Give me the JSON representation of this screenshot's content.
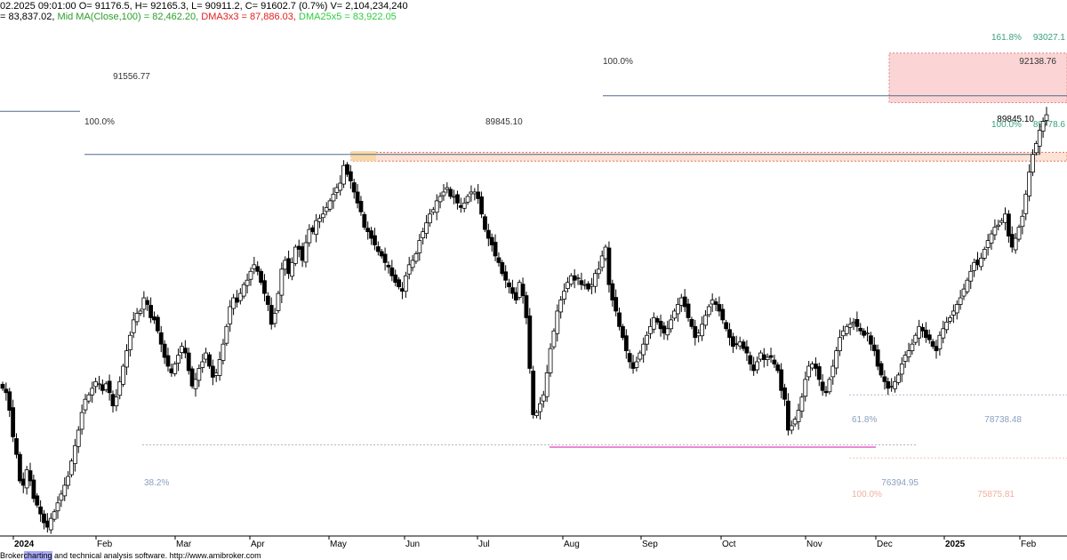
{
  "header": {
    "line1": "02.2025 09:01:00 O= 91176.5, H= 92165.3, L= 90911.2, C= 91602.7 (0.7%) V= 2,104,234,240",
    "line2_prefix": "= 83,837.02, ",
    "mid_ma": "Mid MA(Close,100) = 82,462.20, ",
    "dma3": "DMA3x3 = 87,886.03, ",
    "dma25": "DMA25x5 = 83,922.05",
    "colors": {
      "mid_ma": "#2a9d2a",
      "dma3": "#e02020",
      "dma25": "#2ecc40"
    }
  },
  "footer": {
    "prefix": "Broker",
    "highlight": "charting",
    "text": " and technical analysis software. http://www.amibroker.com"
  },
  "chart_data": {
    "type": "candlestick",
    "x_labels": [
      "2024",
      "Feb",
      "Mar",
      "Apr",
      "May",
      "Jun",
      "Jul",
      "Aug",
      "Sep",
      "Oct",
      "Nov",
      "Dec",
      "2025",
      "Feb"
    ],
    "bold_x_labels": [
      "2024",
      "2025"
    ],
    "ylim": [
      72500,
      96000
    ],
    "levels": [
      {
        "name": "level-91556",
        "value": 91556.77,
        "label": "91556.77",
        "color": "#506a8c"
      },
      {
        "name": "level-89845",
        "value": 89845.1,
        "label": "89845.10",
        "color": "#506a8c"
      },
      {
        "name": "level-92138",
        "value": 92138.76,
        "label": "92138.76",
        "color": "#506a8c"
      },
      {
        "name": "level-78738",
        "value": 78738.48,
        "label": "78738.48",
        "color": "#8aa0c0"
      },
      {
        "name": "level-76394",
        "value": 76394.95,
        "label": "76394.95",
        "color": "#8aa0c0"
      },
      {
        "name": "level-75875",
        "value": 75875.81,
        "label": "75875.81",
        "color": "#f0b0a0"
      },
      {
        "name": "level-89778",
        "value": 89778.6,
        "label": "89778.6",
        "color": "#3aa07a"
      },
      {
        "name": "level-93027",
        "value": 93027.1,
        "label": "93027.1",
        "color": "#3aa07a"
      }
    ],
    "fib_labels": {
      "p100_left": "100.0%",
      "p100_mid": "100.0%",
      "p100_right": "100.0%",
      "p1618": "161.8%",
      "p382": "38.2%",
      "p618": "61.8%",
      "p100_low": "100.0%"
    },
    "closes": [
      79200,
      79000,
      78200,
      77000,
      76200,
      75000,
      74800,
      75500,
      75000,
      74200,
      73900,
      73500,
      73100,
      72900,
      73300,
      73600,
      74000,
      74400,
      74800,
      75200,
      75900,
      76600,
      77300,
      78100,
      78700,
      78900,
      79200,
      79500,
      79400,
      79100,
      79400,
      79000,
      78400,
      78800,
      79500,
      80200,
      80900,
      81600,
      82300,
      82600,
      82700,
      83300,
      83000,
      82400,
      82300,
      81800,
      81200,
      80600,
      80200,
      79900,
      80300,
      80700,
      81100,
      80800,
      80000,
      79300,
      79600,
      80100,
      80400,
      80800,
      80200,
      79700,
      79900,
      80500,
      81200,
      82000,
      82900,
      83300,
      83100,
      83500,
      83900,
      84100,
      84500,
      84800,
      84500,
      84000,
      83500,
      83000,
      82100,
      82600,
      83500,
      84600,
      85000,
      84400,
      84900,
      85600,
      85500,
      85000,
      85800,
      86400,
      86300,
      86800,
      86900,
      87100,
      87400,
      87700,
      88000,
      88300,
      88500,
      89300,
      88900,
      88600,
      88100,
      87600,
      87200,
      86500,
      86300,
      86000,
      85700,
      85400,
      85200,
      84900,
      84700,
      84300,
      84000,
      83800,
      83600,
      84300,
      84800,
      85000,
      85300,
      85900,
      86300,
      86700,
      87100,
      87300,
      87700,
      87900,
      88100,
      88300,
      87900,
      87900,
      87600,
      87400,
      87600,
      87900,
      88100,
      88100,
      87800,
      87100,
      86400,
      86000,
      85700,
      85200,
      84900,
      84400,
      84100,
      83800,
      83500,
      83200,
      84000,
      83400,
      82400,
      80100,
      78000,
      78100,
      78500,
      78900,
      79900,
      81000,
      81800,
      82700,
      83200,
      83600,
      84000,
      84300,
      84100,
      84200,
      83900,
      83900,
      83700,
      83900,
      84400,
      84600,
      85200,
      85600,
      83900,
      83200,
      82700,
      82000,
      81500,
      80900,
      80400,
      80100,
      80400,
      80800,
      81200,
      81600,
      82000,
      82400,
      82200,
      81900,
      81700,
      81900,
      82300,
      82700,
      83000,
      83300,
      82900,
      82400,
      82000,
      81500,
      81700,
      82100,
      82500,
      82900,
      83200,
      83000,
      82700,
      82300,
      81900,
      81500,
      81100,
      81200,
      81300,
      81000,
      80800,
      80300,
      80000,
      80400,
      80800,
      80500,
      80600,
      80600,
      80300,
      80000,
      79100,
      78700,
      77300,
      77500,
      77800,
      78200,
      78800,
      79600,
      80200,
      80300,
      80100,
      79600,
      79100,
      79000,
      79600,
      80200,
      80900,
      81500,
      81800,
      82000,
      82100,
      82200,
      82000,
      81800,
      81600,
      81700,
      81200,
      80900,
      80200,
      79800,
      79500,
      79200,
      79300,
      79500,
      79800,
      80300,
      80700,
      80900,
      81200,
      81600,
      82000,
      81800,
      81500,
      81400,
      81100,
      80900,
      81600,
      81900,
      82200,
      82400,
      82700,
      83000,
      83300,
      83700,
      84100,
      84500,
      84900,
      84800,
      85100,
      85500,
      85900,
      86200,
      86500,
      86600,
      86800,
      87100,
      86100,
      85600,
      86000,
      86500,
      87000,
      88000,
      89000,
      89800,
      90300,
      90900,
      91300,
      91600
    ]
  }
}
